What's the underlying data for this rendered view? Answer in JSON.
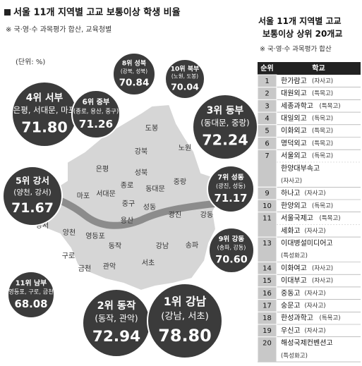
{
  "header": {
    "title": "서울 11개 지역별 고교 보통이상 학생 비율",
    "note": "※ 국·영·수 과목평가 합산, 교육청별",
    "unit": "(단위: %)"
  },
  "bubbles": [
    {
      "title": "8위 성북",
      "districts": "(강북, 성북)",
      "value": "70.84"
    },
    {
      "title": "10위 북부",
      "districts": "(노원, 도봉)",
      "value": "70.04"
    },
    {
      "title": "4위 서부",
      "districts": "(은평, 서대문, 마포)",
      "value": "71.80"
    },
    {
      "title": "6위 중부",
      "districts": "(종로, 용산, 중구)",
      "value": "71.26"
    },
    {
      "title": "3위 동부",
      "districts": "(동대문, 중랑)",
      "value": "72.24"
    },
    {
      "title": "5위 강서",
      "districts": "(양천, 강서)",
      "value": "71.67"
    },
    {
      "title": "7위 성동",
      "districts": "(광진, 성동)",
      "value": "71.17"
    },
    {
      "title": "9위 강동",
      "districts": "(송파, 강동)",
      "value": "70.60"
    },
    {
      "title": "11위 남부",
      "districts": "(영등포, 구로, 금천)",
      "value": "68.08"
    },
    {
      "title": "2위 동작",
      "districts": "(동작, 관악)",
      "value": "72.94"
    },
    {
      "title": "1위 강남",
      "districts": "(강남, 서초)",
      "value": "78.80"
    }
  ],
  "districts": [
    "도봉",
    "노원",
    "강북",
    "성북",
    "은평",
    "종로",
    "서대문",
    "동대문",
    "중랑",
    "마포",
    "중구",
    "성동",
    "광진",
    "용산",
    "강동",
    "강서",
    "양천",
    "영등포",
    "동작",
    "송파",
    "구로",
    "강남",
    "서초",
    "금천",
    "관악"
  ],
  "table": {
    "title": "서울 11개 지역별 고교 보통이상 상위 20개교",
    "note": "※ 국·영·수 과목평가 합산",
    "columns": [
      "순위",
      "학교"
    ],
    "rows": [
      {
        "rank": "1",
        "schools": [
          {
            "name": "한가람고",
            "type": "(자사고)"
          }
        ]
      },
      {
        "rank": "2",
        "schools": [
          {
            "name": "대원외고",
            "type": "(특목고)"
          }
        ]
      },
      {
        "rank": "3",
        "schools": [
          {
            "name": "세종과학고",
            "type": "(특목고)"
          }
        ]
      },
      {
        "rank": "4",
        "schools": [
          {
            "name": "대일외고",
            "type": "(특목고)"
          }
        ]
      },
      {
        "rank": "5",
        "schools": [
          {
            "name": "이화외고",
            "type": "(특목고)"
          }
        ]
      },
      {
        "rank": "6",
        "schools": [
          {
            "name": "명덕외고",
            "type": "(특목고)"
          }
        ]
      },
      {
        "rank": "7",
        "schools": [
          {
            "name": "서울외고",
            "type": "(특목고)"
          },
          {
            "name": "한양대부속고",
            "type": "(자사고)"
          }
        ]
      },
      {
        "rank": "9",
        "schools": [
          {
            "name": "하나고",
            "type": "(자사고)"
          }
        ]
      },
      {
        "rank": "10",
        "schools": [
          {
            "name": "한양외고",
            "type": "(특목고)"
          }
        ]
      },
      {
        "rank": "11",
        "schools": [
          {
            "name": "서울국제고",
            "type": "(특목고)"
          },
          {
            "name": "세화고",
            "type": "(자사고)"
          }
        ]
      },
      {
        "rank": "13",
        "schools": [
          {
            "name": "이대병설미디어고",
            "type": "(특성화고)"
          }
        ]
      },
      {
        "rank": "14",
        "schools": [
          {
            "name": "이화여고",
            "type": "(자사고)"
          }
        ]
      },
      {
        "rank": "15",
        "schools": [
          {
            "name": "이대부고",
            "type": "(자사고)"
          }
        ]
      },
      {
        "rank": "16",
        "schools": [
          {
            "name": "중동고",
            "type": "(자사고)"
          }
        ]
      },
      {
        "rank": "17",
        "schools": [
          {
            "name": "숭문고",
            "type": "(자사고)"
          }
        ]
      },
      {
        "rank": "18",
        "schools": [
          {
            "name": "한성과학고",
            "type": "(특목고)"
          }
        ]
      },
      {
        "rank": "19",
        "schools": [
          {
            "name": "우신고",
            "type": "(자사고)"
          }
        ]
      },
      {
        "rank": "20",
        "schools": [
          {
            "name": "해성국제컨벤션고",
            "type": "(특성화고)"
          }
        ]
      }
    ]
  }
}
